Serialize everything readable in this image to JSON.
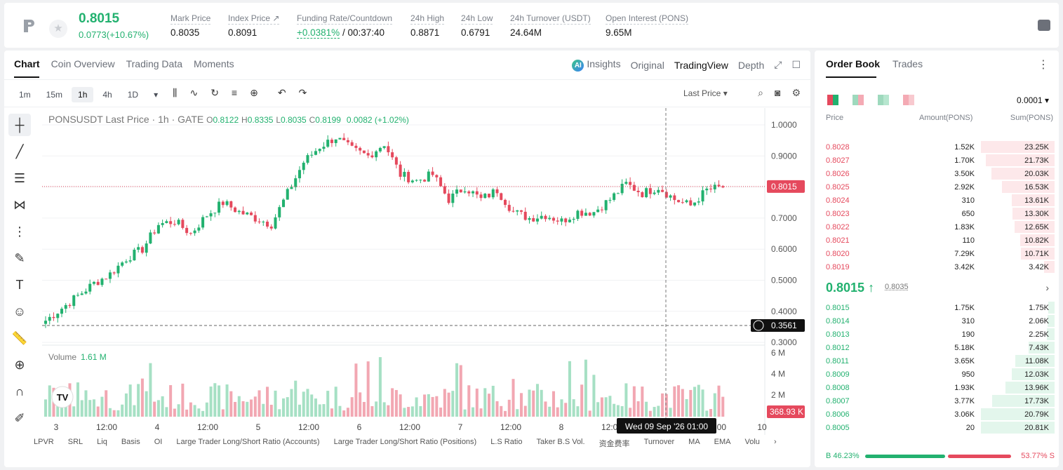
{
  "ticker": {
    "last": "0.8015",
    "change": "0.0773(+10.67%)"
  },
  "stats": [
    {
      "label": "Mark Price",
      "value": "0.8035"
    },
    {
      "label": "Index Price ↗",
      "value": "0.8091"
    },
    {
      "label": "Funding Rate/Countdown",
      "value_green": "+0.0381%",
      "value": " / 00:37:40"
    },
    {
      "label": "24h High",
      "value": "0.8871"
    },
    {
      "label": "24h Low",
      "value": "0.6791"
    },
    {
      "label": "24h Turnover (USDT)",
      "value": "24.64M"
    },
    {
      "label": "Open Interest (PONS)",
      "value": "9.65M"
    }
  ],
  "chart_tabs": [
    "Chart",
    "Coin Overview",
    "Trading Data",
    "Moments"
  ],
  "view_tabs": [
    "Insights",
    "Original",
    "TradingView",
    "Depth"
  ],
  "timeframes": [
    "1m",
    "15m",
    "1h",
    "4h",
    "1D"
  ],
  "price_type": "Last Price",
  "ohlc": {
    "title": "PONSUSDT Last Price · 1h · GATE",
    "o": "0.8122",
    "h": "0.8335",
    "l": "0.8035",
    "c": "0.8199",
    "chg": "0.0082 (+1.02%)"
  },
  "volume": {
    "label": "Volume",
    "value": "1.61 M",
    "last_tag": "368.93 K"
  },
  "price_tag": "0.8015",
  "cross_tag": "0.3561",
  "crosshair_time": "Wed 09 Sep '26   01:00",
  "indicators": [
    "LPVR",
    "SRL",
    "Liq",
    "Basis",
    "OI",
    "Large Trader Long/Short Ratio (Accounts)",
    "Large Trader Long/Short Ratio (Positions)",
    "L.S Ratio",
    "Taker B.S Vol.",
    "资金费率",
    "Turnover",
    "MA",
    "EMA",
    "Volu"
  ],
  "chart_data": {
    "type": "candlestick",
    "y_ticks": [
      "1.0000",
      "0.9000",
      "0.8000",
      "0.7000",
      "0.6000",
      "0.5000",
      "0.4000",
      "0.3000"
    ],
    "vol_ticks": [
      "6 M",
      "4 M",
      "2 M"
    ],
    "x_ticks": [
      "3",
      "12:00",
      "4",
      "12:00",
      "5",
      "12:00",
      "6",
      "12:00",
      "7",
      "12:00",
      "8",
      "12:00",
      "12:00",
      "10"
    ]
  },
  "orderbook": {
    "tabs": [
      "Order Book",
      "Trades"
    ],
    "precision": "0.0001",
    "cols": [
      "Price",
      "Amount(PONS)",
      "Sum(PONS)"
    ],
    "asks": [
      [
        "0.8028",
        "1.52K",
        "23.25K"
      ],
      [
        "0.8027",
        "1.70K",
        "21.73K"
      ],
      [
        "0.8026",
        "3.50K",
        "20.03K"
      ],
      [
        "0.8025",
        "2.92K",
        "16.53K"
      ],
      [
        "0.8024",
        "310",
        "13.61K"
      ],
      [
        "0.8023",
        "650",
        "13.30K"
      ],
      [
        "0.8022",
        "1.83K",
        "12.65K"
      ],
      [
        "0.8021",
        "110",
        "10.82K"
      ],
      [
        "0.8020",
        "7.29K",
        "10.71K"
      ],
      [
        "0.8019",
        "3.42K",
        "3.42K"
      ]
    ],
    "mid": "0.8015",
    "mark": "0.8035",
    "bids": [
      [
        "0.8015",
        "1.75K",
        "1.75K"
      ],
      [
        "0.8014",
        "310",
        "2.06K"
      ],
      [
        "0.8013",
        "190",
        "2.25K"
      ],
      [
        "0.8012",
        "5.18K",
        "7.43K"
      ],
      [
        "0.8011",
        "3.65K",
        "11.08K"
      ],
      [
        "0.8009",
        "950",
        "12.03K"
      ],
      [
        "0.8008",
        "1.93K",
        "13.96K"
      ],
      [
        "0.8007",
        "3.77K",
        "17.73K"
      ],
      [
        "0.8006",
        "3.06K",
        "20.79K"
      ],
      [
        "0.8005",
        "20",
        "20.81K"
      ]
    ],
    "buy_pct": "B 46.23%",
    "sell_pct": "53.77% S"
  }
}
